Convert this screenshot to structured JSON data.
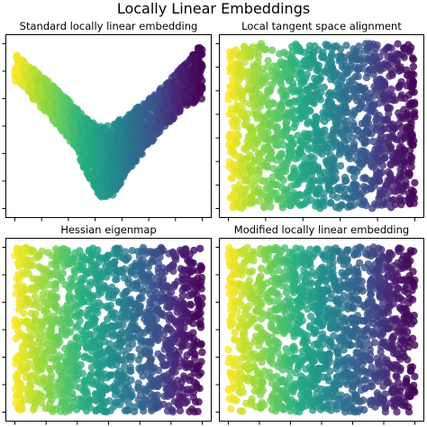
{
  "figure": {
    "suptitle": "Locally Linear Embeddings"
  },
  "colors": {
    "colormap": "viridis",
    "low": "#440154",
    "mid": "#21918c",
    "high": "#fde725"
  },
  "chart_data": [
    {
      "type": "scatter",
      "title": "Standard locally linear embedding",
      "shape": "v-curve",
      "color_by": "x",
      "colormap": "viridis",
      "color_direction": "yellow-left-purple-right",
      "n_points": 1500,
      "xlabel": "",
      "ylabel": "",
      "xlim": [
        0,
        1
      ],
      "ylim": [
        0,
        1
      ],
      "x_tick_count": 8,
      "y_tick_count": 7,
      "tick_labels_shown": false,
      "grid": false,
      "legend": false,
      "outline": [
        {
          "x": 0.02,
          "y_top": 0.93,
          "y_bottom": 0.77
        },
        {
          "x": 0.1,
          "y_top": 0.85,
          "y_bottom": 0.66
        },
        {
          "x": 0.2,
          "y_top": 0.75,
          "y_bottom": 0.54
        },
        {
          "x": 0.3,
          "y_top": 0.64,
          "y_bottom": 0.4
        },
        {
          "x": 0.38,
          "y_top": 0.55,
          "y_bottom": 0.22
        },
        {
          "x": 0.46,
          "y_top": 0.5,
          "y_bottom": 0.06
        },
        {
          "x": 0.52,
          "y_top": 0.51,
          "y_bottom": 0.07
        },
        {
          "x": 0.6,
          "y_top": 0.57,
          "y_bottom": 0.22
        },
        {
          "x": 0.7,
          "y_top": 0.65,
          "y_bottom": 0.36
        },
        {
          "x": 0.8,
          "y_top": 0.75,
          "y_bottom": 0.5
        },
        {
          "x": 0.9,
          "y_top": 0.87,
          "y_bottom": 0.6
        },
        {
          "x": 0.98,
          "y_top": 0.98,
          "y_bottom": 0.66
        }
      ]
    },
    {
      "type": "scatter",
      "title": "Local tangent space alignment",
      "shape": "square",
      "color_by": "x",
      "colormap": "viridis",
      "color_direction": "yellow-left-purple-right",
      "n_points": 1500,
      "xlabel": "",
      "ylabel": "",
      "xlim": [
        0,
        1
      ],
      "ylim": [
        0,
        1
      ],
      "x_tick_count": 6,
      "y_tick_count": 8,
      "tick_labels_shown": false,
      "grid": false,
      "legend": false
    },
    {
      "type": "scatter",
      "title": "Hessian eigenmap",
      "shape": "square",
      "color_by": "x",
      "colormap": "viridis",
      "color_direction": "yellow-left-purple-right",
      "n_points": 1500,
      "xlabel": "",
      "ylabel": "",
      "xlim": [
        0,
        1
      ],
      "ylim": [
        0,
        1
      ],
      "x_tick_count": 7,
      "y_tick_count": 7,
      "tick_labels_shown": false,
      "grid": false,
      "legend": false
    },
    {
      "type": "scatter",
      "title": "Modified locally linear embedding",
      "shape": "square",
      "color_by": "x",
      "colormap": "viridis",
      "color_direction": "yellow-left-purple-right",
      "n_points": 1500,
      "xlabel": "",
      "ylabel": "",
      "xlim": [
        0,
        1
      ],
      "ylim": [
        0,
        1
      ],
      "x_tick_count": 7,
      "y_tick_count": 7,
      "tick_labels_shown": false,
      "grid": false,
      "legend": false
    }
  ]
}
